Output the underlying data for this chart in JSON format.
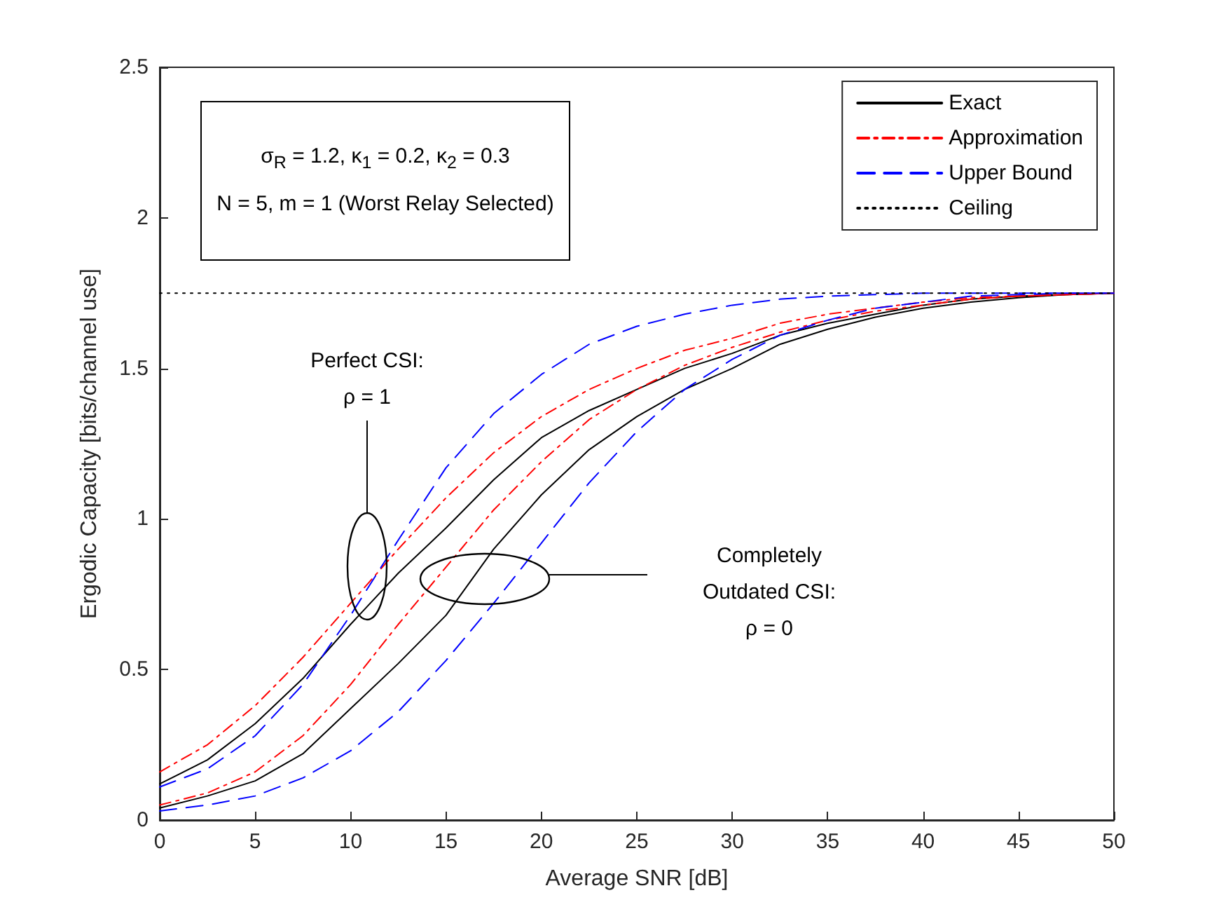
{
  "chart_data": {
    "type": "line",
    "xlabel": "Average SNR [dB]",
    "ylabel": "Ergodic Capacity [bits/channel use]",
    "x": [
      0,
      2.5,
      5,
      7.5,
      10,
      12.5,
      15,
      17.5,
      20,
      22.5,
      25,
      27.5,
      30,
      32.5,
      35,
      37.5,
      40,
      42.5,
      45,
      47.5,
      50
    ],
    "xlim": [
      0,
      50
    ],
    "xticks": [
      0,
      5,
      10,
      15,
      20,
      25,
      30,
      35,
      40,
      45,
      50
    ],
    "ylim": [
      0,
      2.5
    ],
    "yticks": [
      0,
      0.5,
      1,
      1.5,
      2,
      2.5
    ],
    "grid": false,
    "legend": "top right",
    "marker": "none",
    "series": [
      {
        "name": "Exact",
        "color": "#000000",
        "line_style": "solid",
        "values": [
          0.12,
          0.2,
          0.32,
          0.47,
          0.65,
          0.82,
          0.97,
          1.13,
          1.27,
          1.36,
          1.43,
          1.5,
          1.55,
          1.61,
          1.65,
          1.68,
          1.71,
          1.73,
          1.74,
          1.745,
          1.75
        ]
      },
      {
        "color": "#000000",
        "line_style": "solid",
        "values": [
          0.04,
          0.08,
          0.13,
          0.22,
          0.37,
          0.52,
          0.68,
          0.9,
          1.08,
          1.23,
          1.34,
          1.43,
          1.5,
          1.58,
          1.63,
          1.67,
          1.7,
          1.72,
          1.735,
          1.745,
          1.75
        ]
      },
      {
        "name": "Approximation",
        "color": "#ff0000",
        "line_style": "dashdot",
        "values": [
          0.16,
          0.25,
          0.38,
          0.54,
          0.72,
          0.9,
          1.07,
          1.22,
          1.34,
          1.43,
          1.5,
          1.56,
          1.6,
          1.65,
          1.68,
          1.7,
          1.72,
          1.735,
          1.74,
          1.745,
          1.75
        ]
      },
      {
        "color": "#ff0000",
        "line_style": "dashdot",
        "values": [
          0.05,
          0.09,
          0.16,
          0.28,
          0.45,
          0.65,
          0.84,
          1.03,
          1.19,
          1.33,
          1.43,
          1.51,
          1.57,
          1.62,
          1.66,
          1.69,
          1.71,
          1.73,
          1.74,
          1.745,
          1.75
        ]
      },
      {
        "name": "Upper Bound",
        "color": "#0000ff",
        "line_style": "dashed",
        "values": [
          0.11,
          0.17,
          0.28,
          0.45,
          0.68,
          0.93,
          1.17,
          1.35,
          1.48,
          1.58,
          1.64,
          1.68,
          1.71,
          1.73,
          1.74,
          1.745,
          1.75,
          1.75,
          1.75,
          1.75,
          1.75
        ]
      },
      {
        "color": "#0000ff",
        "line_style": "dashed",
        "values": [
          0.03,
          0.05,
          0.08,
          0.14,
          0.23,
          0.36,
          0.53,
          0.72,
          0.92,
          1.12,
          1.29,
          1.43,
          1.53,
          1.61,
          1.66,
          1.7,
          1.72,
          1.74,
          1.745,
          1.75,
          1.75
        ]
      },
      {
        "name": "Ceiling",
        "color": "#000000",
        "line_style": "dotted",
        "x": [
          0,
          50
        ],
        "values": [
          1.75,
          1.75
        ]
      }
    ],
    "annotations": [
      "σ$_{R}$ = 1.2, κ$_{1}$ = 0.2, κ$_{2}$ = 0.3\nN = 5, m = 1 (Worst Relay Selected)",
      "Perfect CSI:\nρ = 1",
      "Completely\nOutdated CSI:\nρ = 0"
    ]
  }
}
